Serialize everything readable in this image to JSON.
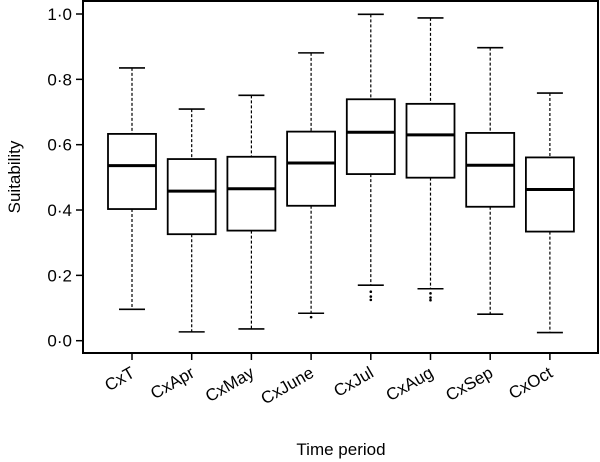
{
  "chart_data": {
    "type": "boxplot",
    "xlabel": "Time period",
    "ylabel": "Suitability",
    "ylim": [
      0,
      1.0
    ],
    "yticks": [
      "0·0",
      "0·2",
      "0·4",
      "0·6",
      "0·8",
      "1·0"
    ],
    "ytick_values": [
      0,
      0.2,
      0.4,
      0.6,
      0.8,
      1.0
    ],
    "grid": false,
    "categories": [
      "CxT",
      "CxApr",
      "CxMay",
      "CxJune",
      "CxJul",
      "CxAug",
      "CxSep",
      "CxOct"
    ],
    "boxes": [
      {
        "whisker_low": 0.096,
        "q1": 0.403,
        "median": 0.536,
        "q3": 0.633,
        "whisker_high": 0.835,
        "outliers": []
      },
      {
        "whisker_low": 0.027,
        "q1": 0.326,
        "median": 0.458,
        "q3": 0.556,
        "whisker_high": 0.709,
        "outliers": []
      },
      {
        "whisker_low": 0.036,
        "q1": 0.337,
        "median": 0.465,
        "q3": 0.563,
        "whisker_high": 0.751,
        "outliers": []
      },
      {
        "whisker_low": 0.084,
        "q1": 0.413,
        "median": 0.544,
        "q3": 0.64,
        "whisker_high": 0.881,
        "outliers": [
          0.072
        ]
      },
      {
        "whisker_low": 0.17,
        "q1": 0.51,
        "median": 0.638,
        "q3": 0.739,
        "whisker_high": 0.999,
        "outliers": [
          0.15,
          0.135,
          0.125
        ]
      },
      {
        "whisker_low": 0.159,
        "q1": 0.499,
        "median": 0.63,
        "q3": 0.725,
        "whisker_high": 0.988,
        "outliers": [
          0.145,
          0.132,
          0.124
        ]
      },
      {
        "whisker_low": 0.081,
        "q1": 0.41,
        "median": 0.537,
        "q3": 0.636,
        "whisker_high": 0.897,
        "outliers": []
      },
      {
        "whisker_low": 0.025,
        "q1": 0.334,
        "median": 0.463,
        "q3": 0.561,
        "whisker_high": 0.758,
        "outliers": []
      }
    ]
  }
}
